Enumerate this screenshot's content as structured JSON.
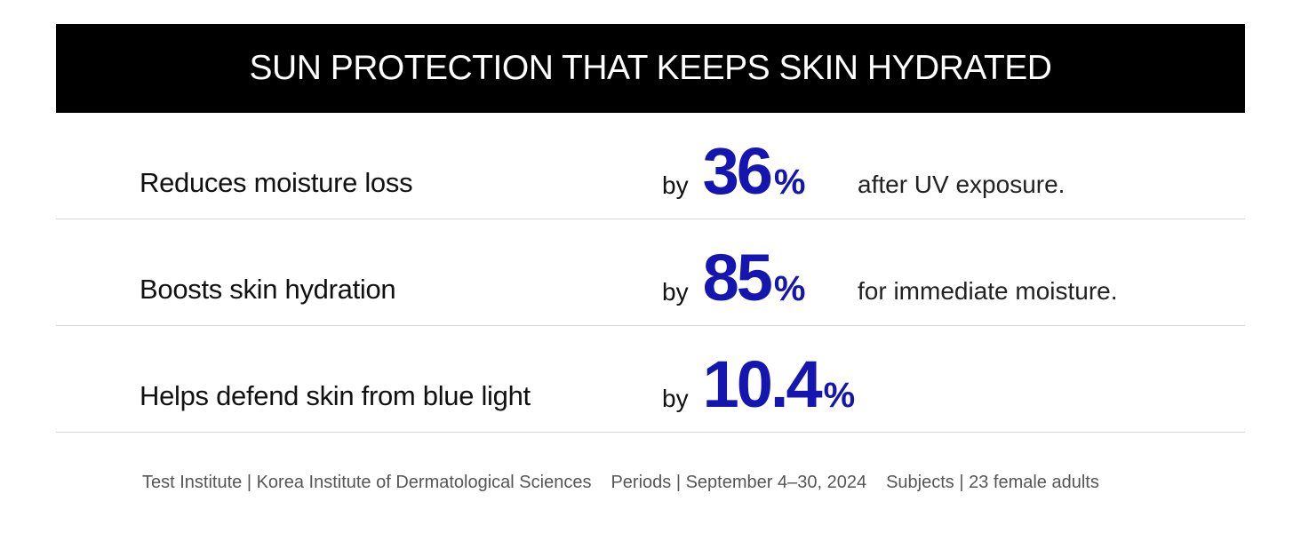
{
  "header": {
    "title": "SUN PROTECTION THAT KEEPS SKIN HYDRATED"
  },
  "rows": [
    {
      "label": "Reduces moisture loss",
      "prefix": "by",
      "value": 36,
      "unit": "%",
      "suffix": "after UV exposure."
    },
    {
      "label": "Boosts skin hydration",
      "prefix": "by",
      "value": 85,
      "unit": "%",
      "suffix": "for immediate moisture."
    },
    {
      "label": "Helps defend skin from blue light",
      "prefix": "by",
      "value": 10.4,
      "unit": "%"
    }
  ],
  "footer": [
    "Test Institute | Korea Institute of Dermatological Sciences",
    "Periods | September 4–30, 2024",
    "Subjects | 23 female adults"
  ]
}
